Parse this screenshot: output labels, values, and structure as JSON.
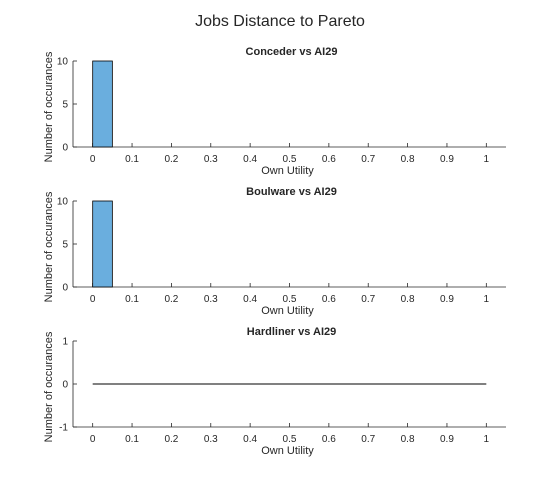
{
  "figure_title": "Jobs Distance to Pareto",
  "chart_data": [
    {
      "type": "bar",
      "title": "Conceder vs AI29",
      "xlabel": "Own Utility",
      "ylabel": "Number of occurances",
      "xlim": [
        -0.05,
        1.05
      ],
      "ylim": [
        0,
        10
      ],
      "xticks": [
        "0",
        "0.1",
        "0.2",
        "0.3",
        "0.4",
        "0.5",
        "0.6",
        "0.7",
        "0.8",
        "0.9",
        "1"
      ],
      "yticks": [
        "0",
        "5",
        "10"
      ],
      "bins": [
        {
          "x0": 0,
          "x1": 0.05,
          "count": 10
        }
      ],
      "bar_color": "#6aaede",
      "grid": false
    },
    {
      "type": "bar",
      "title": "Boulware vs AI29",
      "xlabel": "Own Utility",
      "ylabel": "Number of occurances",
      "xlim": [
        -0.05,
        1.05
      ],
      "ylim": [
        0,
        10
      ],
      "xticks": [
        "0",
        "0.1",
        "0.2",
        "0.3",
        "0.4",
        "0.5",
        "0.6",
        "0.7",
        "0.8",
        "0.9",
        "1"
      ],
      "yticks": [
        "0",
        "5",
        "10"
      ],
      "bins": [
        {
          "x0": 0,
          "x1": 0.05,
          "count": 10
        }
      ],
      "bar_color": "#6aaede",
      "grid": false
    },
    {
      "type": "line",
      "title": "Hardliner vs AI29",
      "xlabel": "Own Utility",
      "ylabel": "Number of occurances",
      "xlim": [
        -0.05,
        1.05
      ],
      "ylim": [
        -1,
        1
      ],
      "xticks": [
        "0",
        "0.1",
        "0.2",
        "0.3",
        "0.4",
        "0.5",
        "0.6",
        "0.7",
        "0.8",
        "0.9",
        "1"
      ],
      "yticks": [
        "-1",
        "0",
        "1"
      ],
      "line": {
        "x": [
          0,
          1
        ],
        "y": [
          0,
          0
        ]
      },
      "grid": false
    }
  ]
}
